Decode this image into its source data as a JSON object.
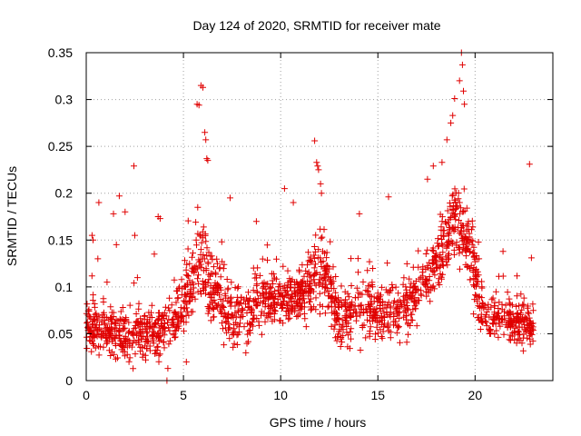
{
  "chart_data": {
    "type": "scatter",
    "title": "Day 124 of 2020, SRMTID for receiver mate",
    "xlabel": "GPS time / hours",
    "ylabel": "SRMTID / TECUs",
    "xlim": [
      0,
      24.0
    ],
    "ylim": [
      0,
      0.35
    ],
    "xticks": [
      0,
      5,
      10,
      15,
      20
    ],
    "xtick_labels": [
      "0",
      "5",
      "10",
      "15",
      "20"
    ],
    "yticks": [
      0,
      0.05,
      0.1,
      0.15,
      0.2,
      0.25,
      0.3,
      0.35
    ],
    "ytick_labels": [
      "0",
      "0.05",
      "0.1",
      "0.15",
      "0.2",
      "0.25",
      "0.3",
      "0.35"
    ],
    "grid": true,
    "marker": "plus",
    "color": "#e00000",
    "series": [
      {
        "name": "SRMTID",
        "x_range": [
          0,
          23.0
        ],
        "features": [
          {
            "x": 0.3,
            "y": 0.155
          },
          {
            "x": 0.35,
            "y": 0.15
          },
          {
            "x": 0.6,
            "y": 0.13
          },
          {
            "x": 0.65,
            "y": 0.19
          },
          {
            "x": 1.4,
            "y": 0.178
          },
          {
            "x": 1.55,
            "y": 0.145
          },
          {
            "x": 1.7,
            "y": 0.197
          },
          {
            "x": 2.0,
            "y": 0.18
          },
          {
            "x": 2.45,
            "y": 0.229
          },
          {
            "x": 2.5,
            "y": 0.155
          },
          {
            "x": 3.5,
            "y": 0.135
          },
          {
            "x": 3.7,
            "y": 0.175
          },
          {
            "x": 3.8,
            "y": 0.173
          },
          {
            "x": 4.15,
            "y": 0.0
          },
          {
            "x": 4.2,
            "y": 0.013
          },
          {
            "x": 5.15,
            "y": 0.02
          },
          {
            "x": 5.7,
            "y": 0.295
          },
          {
            "x": 5.8,
            "y": 0.294
          },
          {
            "x": 5.9,
            "y": 0.315
          },
          {
            "x": 6.0,
            "y": 0.313
          },
          {
            "x": 6.1,
            "y": 0.265
          },
          {
            "x": 6.15,
            "y": 0.257
          },
          {
            "x": 6.2,
            "y": 0.237
          },
          {
            "x": 6.25,
            "y": 0.235
          },
          {
            "x": 7.4,
            "y": 0.195
          },
          {
            "x": 8.75,
            "y": 0.17
          },
          {
            "x": 10.2,
            "y": 0.205
          },
          {
            "x": 10.65,
            "y": 0.19
          },
          {
            "x": 11.75,
            "y": 0.256
          },
          {
            "x": 11.85,
            "y": 0.233
          },
          {
            "x": 11.9,
            "y": 0.229
          },
          {
            "x": 11.95,
            "y": 0.225
          },
          {
            "x": 12.05,
            "y": 0.21
          },
          {
            "x": 12.1,
            "y": 0.2
          },
          {
            "x": 14.05,
            "y": 0.178
          },
          {
            "x": 15.55,
            "y": 0.196
          },
          {
            "x": 17.55,
            "y": 0.215
          },
          {
            "x": 17.85,
            "y": 0.229
          },
          {
            "x": 18.3,
            "y": 0.233
          },
          {
            "x": 18.55,
            "y": 0.257
          },
          {
            "x": 18.75,
            "y": 0.275
          },
          {
            "x": 18.85,
            "y": 0.283
          },
          {
            "x": 18.95,
            "y": 0.301
          },
          {
            "x": 19.2,
            "y": 0.32
          },
          {
            "x": 19.3,
            "y": 0.35
          },
          {
            "x": 19.35,
            "y": 0.337
          },
          {
            "x": 19.4,
            "y": 0.309
          },
          {
            "x": 19.45,
            "y": 0.295
          },
          {
            "x": 20.2,
            "y": 0.13
          },
          {
            "x": 22.8,
            "y": 0.231
          },
          {
            "x": 22.9,
            "y": 0.131
          }
        ],
        "envelope": [
          {
            "x": 0.0,
            "mean": 0.06,
            "spread": 0.025
          },
          {
            "x": 1.0,
            "mean": 0.055,
            "spread": 0.03
          },
          {
            "x": 2.0,
            "mean": 0.045,
            "spread": 0.025
          },
          {
            "x": 3.0,
            "mean": 0.05,
            "spread": 0.03
          },
          {
            "x": 4.0,
            "mean": 0.055,
            "spread": 0.03
          },
          {
            "x": 5.0,
            "mean": 0.08,
            "spread": 0.03
          },
          {
            "x": 5.8,
            "mean": 0.13,
            "spread": 0.04
          },
          {
            "x": 6.5,
            "mean": 0.1,
            "spread": 0.04
          },
          {
            "x": 7.5,
            "mean": 0.065,
            "spread": 0.03
          },
          {
            "x": 8.5,
            "mean": 0.075,
            "spread": 0.03
          },
          {
            "x": 9.5,
            "mean": 0.09,
            "spread": 0.03
          },
          {
            "x": 10.5,
            "mean": 0.085,
            "spread": 0.03
          },
          {
            "x": 11.5,
            "mean": 0.1,
            "spread": 0.035
          },
          {
            "x": 12.2,
            "mean": 0.12,
            "spread": 0.04
          },
          {
            "x": 13.0,
            "mean": 0.065,
            "spread": 0.03
          },
          {
            "x": 14.0,
            "mean": 0.085,
            "spread": 0.035
          },
          {
            "x": 15.0,
            "mean": 0.075,
            "spread": 0.03
          },
          {
            "x": 16.0,
            "mean": 0.07,
            "spread": 0.03
          },
          {
            "x": 17.0,
            "mean": 0.09,
            "spread": 0.03
          },
          {
            "x": 18.0,
            "mean": 0.13,
            "spread": 0.035
          },
          {
            "x": 19.0,
            "mean": 0.17,
            "spread": 0.04
          },
          {
            "x": 19.7,
            "mean": 0.14,
            "spread": 0.04
          },
          {
            "x": 20.3,
            "mean": 0.08,
            "spread": 0.03
          },
          {
            "x": 21.0,
            "mean": 0.07,
            "spread": 0.03
          },
          {
            "x": 22.0,
            "mean": 0.065,
            "spread": 0.025
          },
          {
            "x": 23.0,
            "mean": 0.055,
            "spread": 0.025
          }
        ]
      }
    ]
  }
}
